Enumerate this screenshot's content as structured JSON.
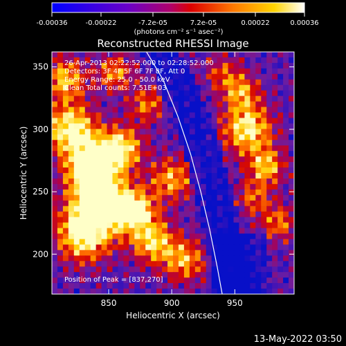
{
  "chart_data": {
    "type": "heatmap",
    "title": "Reconstructed RHESSI Image",
    "xlabel": "Heliocentric X (arcsec)",
    "ylabel": "Heliocentric Y (arcsec)",
    "xlim": [
      805,
      997
    ],
    "ylim": [
      168,
      362
    ],
    "x_ticks": [
      850,
      900,
      950
    ],
    "y_ticks": [
      200,
      250,
      300,
      350
    ],
    "colorbar": {
      "range": [
        -0.00036,
        0.00036
      ],
      "ticks": [
        {
          "value": -0.00036,
          "label": "-0.00036"
        },
        {
          "value": -0.00022,
          "label": "-0.00022"
        },
        {
          "value": -7.2e-05,
          "label": "-7.2e-05"
        },
        {
          "value": 7.2e-05,
          "label": "7.2e-05"
        },
        {
          "value": 0.00022,
          "label": "0.00022"
        },
        {
          "value": 0.00036,
          "label": "0.00036"
        }
      ],
      "units_label": "(photons cm⁻² s⁻¹ asec⁻²)"
    },
    "annotations": [
      "26-Apr-2013 02:22:52.000 to 02:28:52.000",
      "Detectors: 3F 4F 5F 6F 7F 8F, Att 0",
      "Energy Range: 25.0 - 50.0 keV",
      "Clean     Total counts: 7.51E+03"
    ],
    "peak_label": "Position of Peak = [837,270]",
    "peak": [
      837,
      270
    ],
    "limb_curve": [
      [
        880,
        362
      ],
      [
        893,
        340
      ],
      [
        905,
        310
      ],
      [
        915,
        280
      ],
      [
        923,
        250
      ],
      [
        930,
        220
      ],
      [
        936,
        190
      ],
      [
        940,
        168
      ]
    ]
  },
  "footer": {
    "date": "13-May-2022 03:50"
  }
}
